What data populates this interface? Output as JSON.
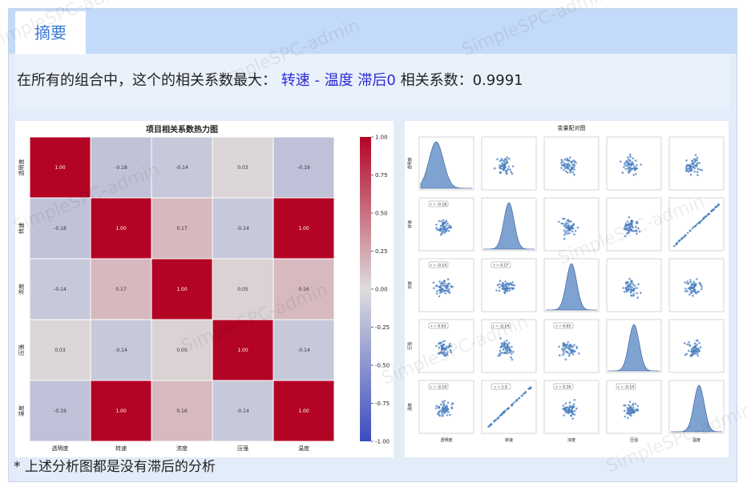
{
  "tab": {
    "label": "摘要"
  },
  "summary": {
    "prefix": "在所有的组合中，这个的相关系数最大：",
    "pair_var1": "转速",
    "pair_sep": " - ",
    "pair_var2": "温度",
    "lag_label": "滞后0",
    "coef_label": "相关系数：",
    "coef_value": "0.9991"
  },
  "footnote": "* 上述分析图都是没有滞后的分析",
  "watermark": "SimpleSPC-admin",
  "colors": {
    "accent": "#2a2ad4",
    "tab_text": "#3b7bd4"
  },
  "chart_data": [
    {
      "type": "heatmap",
      "title": "项目相关系数热力图",
      "labels": [
        "透明度",
        "转速",
        "浓度",
        "压强",
        "温度"
      ],
      "matrix": [
        [
          1.0,
          -0.18,
          -0.14,
          0.03,
          -0.19
        ],
        [
          -0.18,
          1.0,
          0.17,
          -0.14,
          1.0
        ],
        [
          -0.14,
          0.17,
          1.0,
          0.05,
          0.16
        ],
        [
          0.03,
          -0.14,
          0.05,
          1.0,
          -0.14
        ],
        [
          -0.19,
          1.0,
          0.16,
          -0.14,
          1.0
        ]
      ],
      "colorbar_ticks": [
        "1.00",
        "0.75",
        "0.50",
        "0.25",
        "0.00",
        "-0.25",
        "-0.50",
        "-0.75",
        "-1.00"
      ],
      "vmin": -1.0,
      "vmax": 1.0
    },
    {
      "type": "scatter",
      "title": "变量配对图",
      "variables": [
        "透明度",
        "转速",
        "浓度",
        "压强",
        "温度"
      ],
      "r_labels": [
        {
          "row": 1,
          "col": 0,
          "text": "r = -0.18"
        },
        {
          "row": 2,
          "col": 0,
          "text": "r = -0.14"
        },
        {
          "row": 2,
          "col": 1,
          "text": "r = 0.17"
        },
        {
          "row": 3,
          "col": 0,
          "text": "r = 0.03"
        },
        {
          "row": 3,
          "col": 1,
          "text": "r = -0.14"
        },
        {
          "row": 3,
          "col": 2,
          "text": "r = 0.05"
        },
        {
          "row": 4,
          "col": 0,
          "text": "r = -0.19"
        },
        {
          "row": 4,
          "col": 1,
          "text": "r = 1.0"
        },
        {
          "row": 4,
          "col": 2,
          "text": "r = 0.16"
        },
        {
          "row": 4,
          "col": 3,
          "text": "r = -0.14"
        }
      ],
      "x_ticks": [
        "0",
        "10",
        "20",
        "30"
      ],
      "y_ticks": [
        "0",
        "5",
        "10",
        "15",
        "20",
        "25",
        "30"
      ]
    }
  ]
}
